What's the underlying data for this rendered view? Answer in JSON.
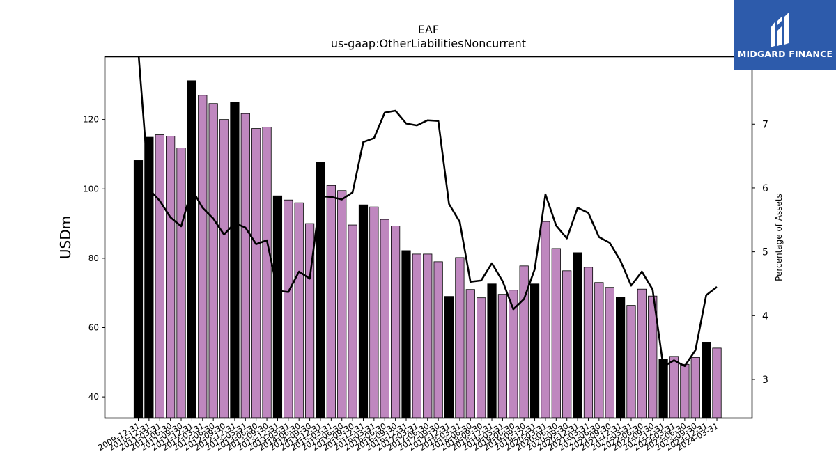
{
  "chart_data": {
    "type": "bar",
    "title": "EAF",
    "subtitle": "us-gaap:OtherLiabilitiesNoncurrent",
    "ylabel": "USDm",
    "y2label": "Percentage of Assets",
    "ylim": [
      34,
      138
    ],
    "y2lim": [
      2.4,
      8.05
    ],
    "yticks": [
      40,
      60,
      80,
      100,
      120
    ],
    "y2ticks": [
      3,
      4,
      5,
      6,
      7
    ],
    "categories": [
      "2009-12-31",
      "2010-12-31",
      "2011-03-31",
      "2011-06-30",
      "2011-09-30",
      "2011-12-31",
      "2012-03-31",
      "2012-06-30",
      "2012-09-30",
      "2012-12-31",
      "2013-03-31",
      "2013-06-30",
      "2013-09-30",
      "2013-12-31",
      "2014-03-31",
      "2014-06-30",
      "2014-09-30",
      "2014-12-31",
      "2015-03-31",
      "2015-06-30",
      "2015-09-30",
      "2015-12-31",
      "2016-03-31",
      "2016-06-30",
      "2016-09-30",
      "2016-12-31",
      "2017-03-31",
      "2017-06-30",
      "2017-09-30",
      "2017-12-31",
      "2018-03-31",
      "2018-06-30",
      "2018-09-30",
      "2018-12-31",
      "2019-03-31",
      "2019-06-30",
      "2019-09-30",
      "2019-12-31",
      "2020-03-31",
      "2020-06-30",
      "2020-09-30",
      "2020-12-31",
      "2021-03-31",
      "2021-06-30",
      "2021-09-30",
      "2021-12-31",
      "2022-03-31",
      "2022-06-30",
      "2022-09-30",
      "2022-12-31",
      "2023-03-31",
      "2023-06-30",
      "2023-09-30",
      "2023-12-31",
      "2024-03-31"
    ],
    "bar_values": [
      108.2,
      114.9,
      115.6,
      115.2,
      111.8,
      131.2,
      127.0,
      124.6,
      120.0,
      125.0,
      121.7,
      117.4,
      117.8,
      98.0,
      96.8,
      96.0,
      90.0,
      107.7,
      101.0,
      99.5,
      89.6,
      95.4,
      94.8,
      91.2,
      89.3,
      82.2,
      81.2,
      81.2,
      79.0,
      69.0,
      80.2,
      71.0,
      68.6,
      72.6,
      69.6,
      70.8,
      77.8,
      72.6,
      90.6,
      82.8,
      76.4,
      81.6,
      77.4,
      73.0,
      71.6,
      68.8,
      66.4,
      71.1,
      69.1,
      50.9,
      51.7,
      49.4,
      51.4,
      55.8,
      54.1
    ],
    "bar_highlight": [
      true,
      true,
      false,
      false,
      false,
      true,
      false,
      false,
      false,
      true,
      false,
      false,
      false,
      true,
      false,
      false,
      false,
      true,
      false,
      false,
      false,
      true,
      false,
      false,
      false,
      true,
      false,
      false,
      false,
      true,
      false,
      false,
      false,
      true,
      false,
      false,
      false,
      true,
      false,
      false,
      false,
      true,
      false,
      false,
      false,
      true,
      false,
      false,
      false,
      true,
      false,
      false,
      false,
      true,
      false
    ],
    "line_values": [
      8.15,
      5.98,
      5.8,
      5.54,
      5.4,
      5.98,
      5.69,
      5.52,
      5.27,
      5.45,
      5.38,
      5.12,
      5.18,
      4.39,
      4.37,
      4.69,
      4.58,
      5.87,
      5.86,
      5.82,
      5.93,
      6.72,
      6.78,
      7.18,
      7.21,
      7.01,
      6.98,
      7.06,
      7.05,
      5.75,
      5.47,
      4.53,
      4.55,
      4.82,
      4.54,
      4.1,
      4.26,
      4.73,
      5.9,
      5.41,
      5.21,
      5.69,
      5.61,
      5.23,
      5.14,
      4.86,
      4.47,
      4.69,
      4.41,
      3.2,
      3.3,
      3.21,
      3.46,
      4.32,
      4.45
    ],
    "colors": {
      "highlight": "#000000",
      "bar": "#bf87bf",
      "line": "#000000"
    },
    "grid": false
  },
  "brand": {
    "name": "MIDGARD FINANCE"
  }
}
